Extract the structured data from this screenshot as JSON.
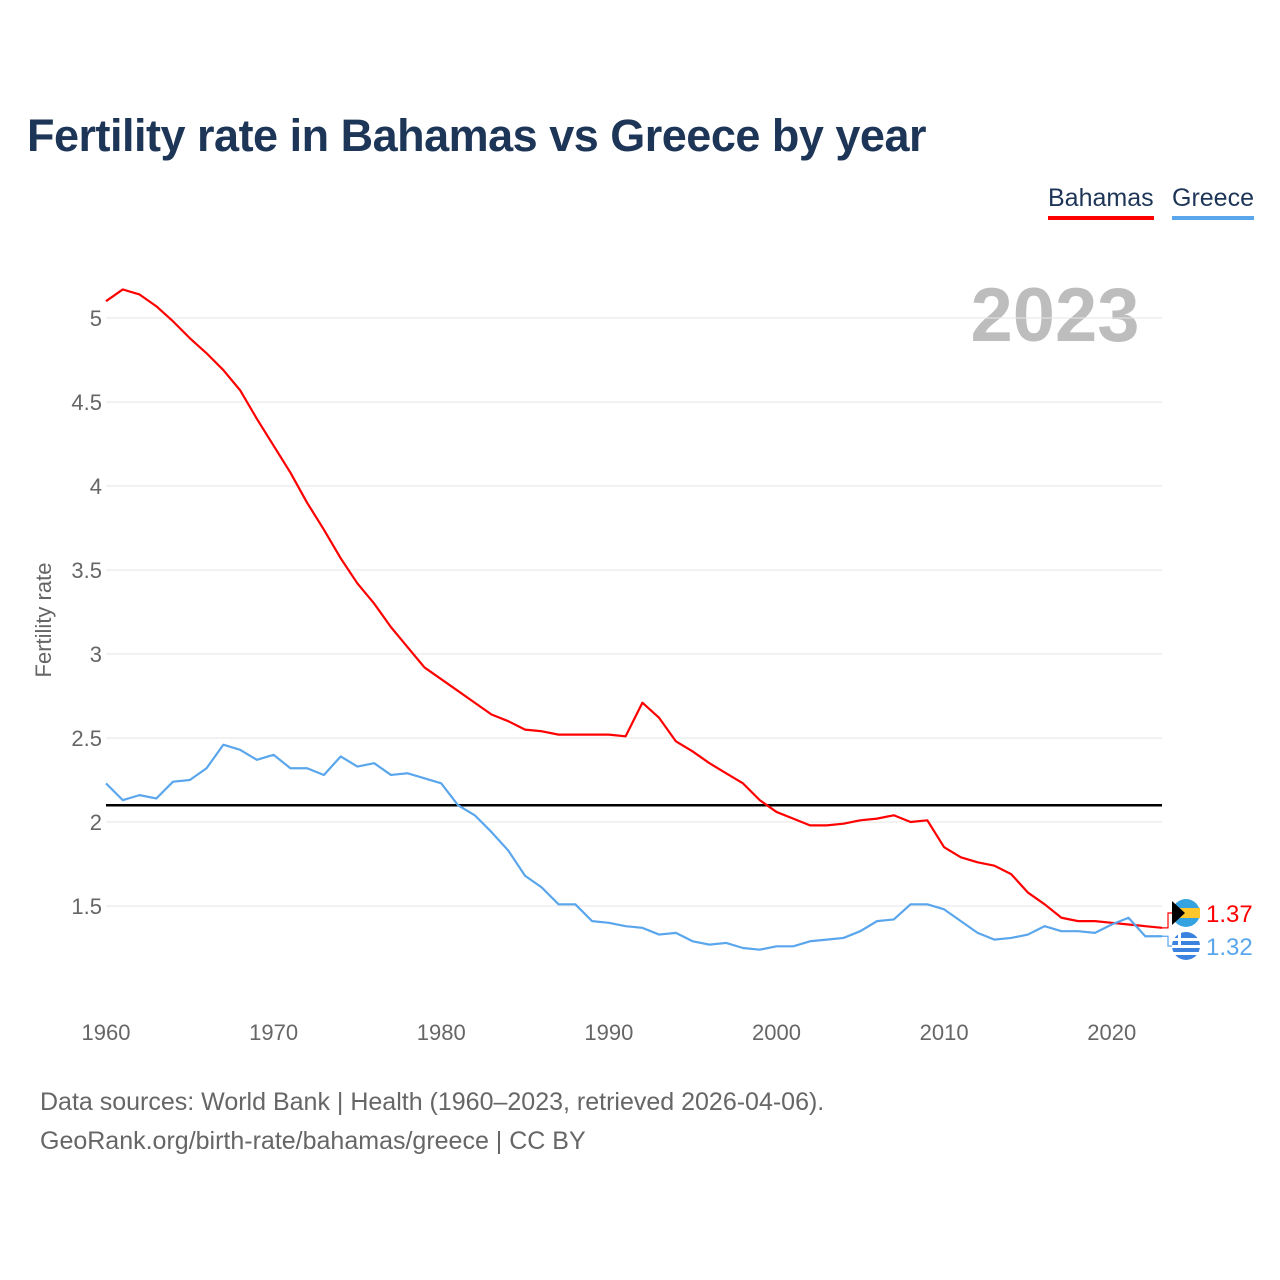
{
  "title": "Fertility rate in Bahamas vs Greece by year",
  "footer": {
    "line1": "Data sources: World Bank | Health (1960–2023, retrieved 2026-04-06).",
    "line2": "GeoRank.org/birth-rate/bahamas/greece | CC BY"
  },
  "chart_data": {
    "type": "line",
    "title": "Fertility rate in Bahamas vs Greece by year",
    "xlabel": "",
    "ylabel": "Fertility rate",
    "year_watermark": "2023",
    "xlim": [
      1960,
      2023
    ],
    "ylim": [
      1.0,
      5.2
    ],
    "xticks": [
      1960,
      1970,
      1980,
      1990,
      2000,
      2010,
      2020
    ],
    "yticks": [
      1.5,
      2,
      2.5,
      3,
      3.5,
      4,
      4.5,
      5
    ],
    "ytick_labels": [
      "1.5",
      "2",
      "2.5",
      "3",
      "3.5",
      "4",
      "4.5",
      "5"
    ],
    "grid": true,
    "legend_position": "top-right",
    "reference_line": {
      "value": 2.1,
      "color": "#000000"
    },
    "x": [
      1960,
      1961,
      1962,
      1963,
      1964,
      1965,
      1966,
      1967,
      1968,
      1969,
      1970,
      1971,
      1972,
      1973,
      1974,
      1975,
      1976,
      1977,
      1978,
      1979,
      1980,
      1981,
      1982,
      1983,
      1984,
      1985,
      1986,
      1987,
      1988,
      1989,
      1990,
      1991,
      1992,
      1993,
      1994,
      1995,
      1996,
      1997,
      1998,
      1999,
      2000,
      2001,
      2002,
      2003,
      2004,
      2005,
      2006,
      2007,
      2008,
      2009,
      2010,
      2011,
      2012,
      2013,
      2014,
      2015,
      2016,
      2017,
      2018,
      2019,
      2020,
      2021,
      2022,
      2023
    ],
    "series": [
      {
        "name": "Bahamas",
        "color": "#ff0000",
        "end_label": "1.37",
        "values": [
          5.1,
          5.17,
          5.14,
          5.07,
          4.98,
          4.88,
          4.79,
          4.69,
          4.57,
          4.4,
          4.24,
          4.08,
          3.9,
          3.74,
          3.57,
          3.42,
          3.3,
          3.16,
          3.04,
          2.92,
          2.85,
          2.78,
          2.71,
          2.64,
          2.6,
          2.55,
          2.54,
          2.52,
          2.52,
          2.52,
          2.52,
          2.51,
          2.71,
          2.62,
          2.48,
          2.42,
          2.35,
          2.29,
          2.23,
          2.13,
          2.06,
          2.02,
          1.98,
          1.98,
          1.99,
          2.01,
          2.02,
          2.04,
          2.0,
          2.01,
          1.85,
          1.79,
          1.76,
          1.74,
          1.69,
          1.58,
          1.51,
          1.43,
          1.41,
          1.41,
          1.4,
          1.39,
          1.38,
          1.37
        ]
      },
      {
        "name": "Greece",
        "color": "#5aa6ec",
        "end_label": "1.32",
        "values": [
          2.23,
          2.13,
          2.16,
          2.14,
          2.24,
          2.25,
          2.32,
          2.46,
          2.43,
          2.37,
          2.4,
          2.32,
          2.32,
          2.28,
          2.39,
          2.33,
          2.35,
          2.28,
          2.29,
          2.26,
          2.23,
          2.1,
          2.04,
          1.94,
          1.83,
          1.68,
          1.61,
          1.51,
          1.51,
          1.41,
          1.4,
          1.38,
          1.37,
          1.33,
          1.34,
          1.29,
          1.27,
          1.28,
          1.25,
          1.24,
          1.26,
          1.26,
          1.29,
          1.3,
          1.31,
          1.35,
          1.41,
          1.42,
          1.51,
          1.51,
          1.48,
          1.41,
          1.34,
          1.3,
          1.31,
          1.33,
          1.38,
          1.35,
          1.35,
          1.34,
          1.39,
          1.43,
          1.32,
          1.32
        ]
      }
    ]
  }
}
